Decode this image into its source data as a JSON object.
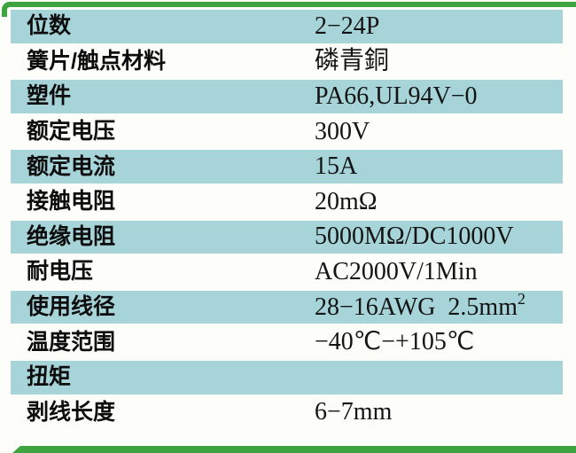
{
  "page": {
    "background_color": "#fdfdfa",
    "accent_green": "#3ea442",
    "row_teal": "#a6d4d8",
    "text_color": "#0d0d0d"
  },
  "table": {
    "rows": [
      {
        "label": "位数",
        "value": "2−24P",
        "shade": "teal"
      },
      {
        "label": "簧片/触点材料",
        "value": "磷青銅",
        "shade": "white"
      },
      {
        "label": "塑件",
        "value": "PA66,UL94V−0",
        "shade": "teal"
      },
      {
        "label": "额定电压",
        "value": "300V",
        "shade": "white"
      },
      {
        "label": "额定电流",
        "value": "15A",
        "shade": "teal"
      },
      {
        "label": "接触电阻",
        "value": "20mΩ",
        "shade": "white"
      },
      {
        "label": "绝缘电阻",
        "value": "5000MΩ/DC1000V",
        "shade": "teal"
      },
      {
        "label": "耐电压",
        "value": "AC2000V/1Min",
        "shade": "white"
      },
      {
        "label": "使用线径",
        "value": "28−16AWG 2.5mm",
        "sup": "2",
        "shade": "teal"
      },
      {
        "label": "温度范围",
        "value": "−40℃−+105℃",
        "shade": "white"
      },
      {
        "label": "扭矩",
        "value": "",
        "shade": "teal"
      },
      {
        "label": "剥线长度",
        "value": "6−7mm",
        "shade": "white"
      }
    ]
  }
}
